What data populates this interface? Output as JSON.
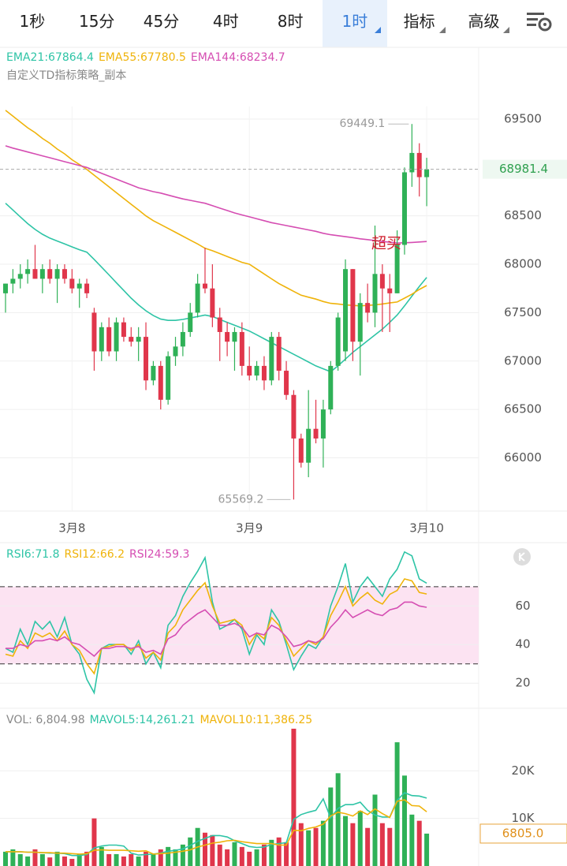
{
  "tabs": {
    "items": [
      "1秒",
      "15分",
      "45分",
      "4时",
      "8时",
      "1时",
      "指标",
      "高级"
    ],
    "active": 5
  },
  "chart_data": [
    {
      "type": "candlestick",
      "subtitle": "自定义TD指标策略_副本",
      "categories": [
        null,
        null,
        null,
        null,
        null,
        null,
        null,
        null,
        null,
        "3月8",
        null,
        null,
        null,
        null,
        null,
        null,
        null,
        null,
        null,
        null,
        null,
        null,
        null,
        null,
        null,
        null,
        null,
        null,
        null,
        null,
        null,
        null,
        null,
        "3月9",
        null,
        null,
        null,
        null,
        null,
        null,
        null,
        null,
        null,
        null,
        null,
        null,
        null,
        null,
        null,
        null,
        null,
        null,
        null,
        null,
        null,
        null,
        null,
        "3月10"
      ],
      "open": [
        67700,
        67800,
        67850,
        67900,
        67950,
        67850,
        67950,
        67850,
        67950,
        67850,
        67750,
        67800,
        67500,
        67100,
        67350,
        67100,
        67400,
        67250,
        67200,
        67250,
        66800,
        66950,
        66600,
        67050,
        67150,
        67300,
        67500,
        67800,
        67750,
        67450,
        67300,
        67200,
        67300,
        66950,
        66850,
        66950,
        66800,
        67250,
        66900,
        66650,
        66200,
        65950,
        66300,
        66200,
        66500,
        66950,
        67100,
        67950,
        67200,
        67600,
        67500,
        67900,
        67750,
        67700,
        68200,
        68950,
        69150,
        68900
      ],
      "high": [
        67800,
        67950,
        68000,
        68050,
        68200,
        68000,
        68050,
        68000,
        68000,
        67950,
        67850,
        67850,
        67550,
        67400,
        67450,
        67450,
        67450,
        67350,
        67350,
        67400,
        67000,
        67000,
        67100,
        67250,
        67400,
        67600,
        67900,
        68170,
        68000,
        67550,
        67400,
        67350,
        67400,
        67150,
        67000,
        67050,
        67300,
        67300,
        67000,
        66700,
        66250,
        66700,
        66600,
        66600,
        67000,
        67500,
        68050,
        67950,
        67700,
        67800,
        68400,
        68000,
        67900,
        68350,
        69000,
        69449.1,
        69250,
        69100
      ],
      "low": [
        67500,
        67700,
        67750,
        67800,
        67850,
        67700,
        67800,
        67600,
        67800,
        67700,
        67550,
        67650,
        66900,
        67000,
        67050,
        67000,
        67200,
        67150,
        67000,
        66700,
        66750,
        66500,
        66550,
        66950,
        67050,
        67250,
        67450,
        67700,
        67350,
        67000,
        67050,
        66900,
        66850,
        66800,
        66800,
        66700,
        66750,
        66800,
        66600,
        65569.2,
        65900,
        65800,
        66150,
        65900,
        66450,
        66900,
        67000,
        67000,
        66850,
        67400,
        67350,
        67300,
        67300,
        67700,
        68100,
        68800,
        68700,
        68600
      ],
      "close": [
        67800,
        67850,
        67900,
        67950,
        67850,
        67950,
        67850,
        67950,
        67850,
        67750,
        67800,
        67700,
        67100,
        67350,
        67100,
        67400,
        67250,
        67200,
        67250,
        66800,
        66950,
        66600,
        67050,
        67150,
        67300,
        67500,
        67800,
        67750,
        67450,
        67300,
        67200,
        67300,
        66950,
        66850,
        66950,
        66800,
        67250,
        66900,
        66650,
        66200,
        65950,
        66300,
        66200,
        66500,
        66950,
        67450,
        67950,
        67200,
        67600,
        67500,
        67900,
        67750,
        67700,
        68200,
        68950,
        69150,
        68900,
        68981.4
      ],
      "up_color": "#2fb157",
      "down_color": "#e0364b",
      "lines": [
        {
          "name": "EMA21:67864.4",
          "color": "#2ec4a6",
          "values": [
            68630,
            68560,
            68490,
            68420,
            68360,
            68310,
            68270,
            68240,
            68210,
            68180,
            68150,
            68125,
            68050,
            67970,
            67890,
            67810,
            67730,
            67650,
            67580,
            67520,
            67470,
            67433,
            67420,
            67420,
            67430,
            67445,
            67460,
            67475,
            67460,
            67430,
            67400,
            67370,
            67340,
            67310,
            67270,
            67230,
            67190,
            67150,
            67110,
            67070,
            67030,
            66990,
            66950,
            66920,
            66890,
            66950,
            67020,
            67090,
            67150,
            67210,
            67270,
            67330,
            67400,
            67475,
            67570,
            67670,
            67770,
            67864.4
          ]
        },
        {
          "name": "EMA55:67780.5",
          "color": "#efb30a",
          "values": [
            69590,
            69530,
            69470,
            69410,
            69360,
            69300,
            69250,
            69190,
            69140,
            69080,
            69030,
            68980,
            68920,
            68860,
            68800,
            68740,
            68680,
            68620,
            68560,
            68500,
            68450,
            68410,
            68370,
            68330,
            68290,
            68250,
            68210,
            68165,
            68140,
            68110,
            68080,
            68050,
            68020,
            68000,
            67950,
            67900,
            67850,
            67800,
            67760,
            67720,
            67680,
            67660,
            67640,
            67615,
            67596,
            67590,
            67580,
            67575,
            67570,
            67575,
            67580,
            67590,
            67600,
            67610,
            67650,
            67690,
            67740,
            67780.5
          ]
        },
        {
          "name": "EMA144:68234.7",
          "color": "#d54db2",
          "values": [
            69223,
            69200,
            69180,
            69160,
            69140,
            69120,
            69100,
            69080,
            69060,
            69040,
            69020,
            69000,
            68970,
            68940,
            68910,
            68880,
            68850,
            68820,
            68790,
            68770,
            68750,
            68735,
            68715,
            68695,
            68675,
            68660,
            68645,
            68630,
            68605,
            68580,
            68555,
            68530,
            68510,
            68490,
            68470,
            68450,
            68430,
            68415,
            68400,
            68385,
            68370,
            68355,
            68340,
            68320,
            68305,
            68295,
            68285,
            68275,
            68263,
            68255,
            68245,
            68235,
            68228,
            68220,
            68222,
            68225,
            68230,
            68234.7
          ]
        }
      ],
      "ylim": [
        65450,
        69630
      ],
      "yticks": [
        66000,
        66500,
        67000,
        67500,
        68000,
        68500,
        69500
      ],
      "annotations": [
        "超买"
      ],
      "grid": true
    },
    {
      "type": "line",
      "series": [
        {
          "name": "RSI6:71.8",
          "color": "#2ec4a6",
          "values": [
            38,
            36,
            48,
            40,
            52,
            48,
            52,
            44,
            54,
            40,
            35,
            22,
            15,
            38,
            40,
            40,
            40,
            35,
            42,
            30,
            36,
            28,
            50,
            55,
            65,
            72,
            78,
            85,
            62,
            48,
            50,
            53,
            48,
            35,
            45,
            40,
            58,
            52,
            40,
            27,
            34,
            40,
            38,
            44,
            60,
            70,
            82,
            62,
            70,
            75,
            70,
            65,
            74,
            79,
            88,
            86,
            74,
            71.8
          ]
        },
        {
          "name": "RSI12:66.2",
          "color": "#efb30a",
          "values": [
            35,
            34,
            42,
            38,
            46,
            44,
            46,
            42,
            47,
            40,
            37,
            30,
            25,
            38,
            39,
            40,
            40,
            37,
            40,
            33,
            36,
            32,
            46,
            50,
            58,
            63,
            68,
            72,
            60,
            51,
            52,
            53,
            50,
            40,
            46,
            43,
            54,
            50,
            42,
            34,
            38,
            42,
            40,
            44,
            55,
            62,
            70,
            60,
            64,
            67,
            63,
            61,
            66,
            68,
            74,
            73,
            67,
            66.2
          ]
        },
        {
          "name": "RSI24:59.3",
          "color": "#d54db2",
          "values": [
            38,
            38,
            40,
            39,
            42,
            42,
            43,
            42,
            44,
            41,
            40,
            37,
            34,
            38,
            38,
            39,
            39,
            38,
            39,
            36,
            37,
            35,
            43,
            45,
            50,
            53,
            56,
            58,
            54,
            50,
            50,
            51,
            49,
            44,
            46,
            45,
            50,
            48,
            44,
            39,
            40,
            42,
            41,
            43,
            49,
            53,
            58,
            54,
            56,
            58,
            56,
            55,
            58,
            59,
            62,
            62,
            60,
            59.3
          ]
        }
      ],
      "band": [
        30,
        70
      ],
      "band_color": "#fce3f2",
      "ylim": [
        7,
        92
      ],
      "yticks": [
        20,
        40,
        60
      ]
    },
    {
      "type": "bar",
      "series": [
        {
          "name": "VOL: 6,804.98",
          "values": [
            3000,
            3500,
            2500,
            2000,
            3500,
            2500,
            1800,
            3000,
            2000,
            1500,
            2500,
            3000,
            10000,
            4000,
            2500,
            2500,
            2000,
            2500,
            2000,
            3000,
            2500,
            3500,
            4000,
            3500,
            4500,
            6000,
            8000,
            7000,
            6500,
            4500,
            3500,
            5000,
            4000,
            3000,
            3500,
            4500,
            5500,
            6000,
            5000,
            28850,
            9000,
            7500,
            8000,
            9500,
            16500,
            19500,
            10500,
            9000,
            11600,
            8000,
            15000,
            9000,
            8000,
            26000,
            19000,
            10800,
            9500,
            6805
          ]
        },
        {
          "name": "MAVOL5:14,261.21",
          "color": "#2ec4a6",
          "values": [
            3000,
            3000,
            3000,
            2900,
            2900,
            2800,
            2700,
            2700,
            2600,
            2200,
            2200,
            2400,
            3800,
            4200,
            4400,
            4400,
            4200,
            2700,
            2300,
            2400,
            2500,
            2700,
            3100,
            3300,
            3600,
            4300,
            5200,
            5800,
            6400,
            6400,
            6100,
            5300,
            4700,
            4100,
            3900,
            4000,
            4500,
            4700,
            4900,
            9800,
            10800,
            11300,
            11700,
            14100,
            10100,
            12100,
            12900,
            12900,
            13400,
            11700,
            10700,
            10300,
            10300,
            13800,
            15400,
            14800,
            14700,
            14261.21
          ]
        },
        {
          "name": "MAVOL10:11,386.25",
          "color": "#efb30a",
          "values": [
            3000,
            3000,
            3000,
            2900,
            2900,
            2800,
            2800,
            2700,
            2700,
            2600,
            2500,
            2600,
            3300,
            3400,
            3300,
            3300,
            3300,
            3200,
            3100,
            3200,
            2500,
            2600,
            2700,
            2900,
            3100,
            3400,
            4000,
            4400,
            4800,
            5000,
            5300,
            5400,
            5100,
            4900,
            4700,
            4700,
            4700,
            4400,
            4400,
            7500,
            7400,
            7900,
            8200,
            8800,
            10500,
            11300,
            11000,
            10500,
            11600,
            10800,
            12000,
            11000,
            10200,
            13600,
            13900,
            12700,
            12600,
            11386.25
          ]
        }
      ],
      "current_label": "6805.0",
      "ylim": [
        0,
        29500
      ],
      "yticks": [
        {
          "value": 10000,
          "label": "10K"
        },
        {
          "value": 20000,
          "label": "20K"
        }
      ]
    }
  ]
}
